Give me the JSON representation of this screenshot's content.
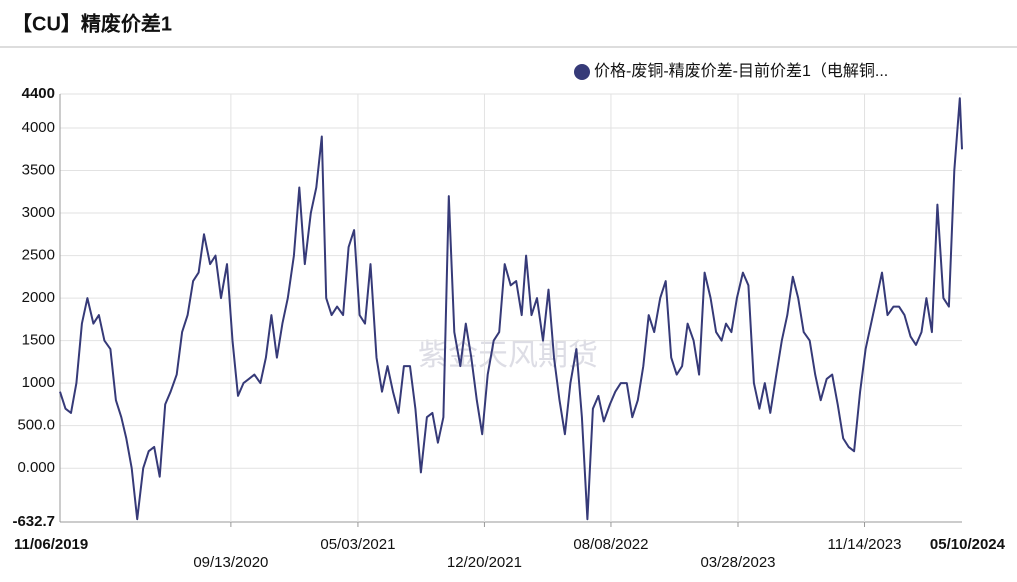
{
  "chart_data": {
    "type": "line",
    "title": "【CU】精废价差1",
    "watermark": "紫金天风期货",
    "grid": true,
    "legend_position": "top-right",
    "xlim": [
      "11/06/2019",
      "05/10/2024"
    ],
    "xticks": [
      "11/06/2019",
      "09/13/2020",
      "05/03/2021",
      "12/20/2021",
      "08/08/2022",
      "03/28/2023",
      "11/14/2023",
      "05/10/2024"
    ],
    "ylim": [
      -632.7,
      4400
    ],
    "yticks": [
      -632.7,
      {
        "value": 0,
        "label": "0.000"
      },
      {
        "value": 500,
        "label": "500.0"
      },
      1000,
      1500,
      2000,
      2500,
      3000,
      3500,
      4000,
      4400
    ],
    "x": [
      "11/06/2019",
      "11/16/2019",
      "11/26/2019",
      "12/06/2019",
      "12/16/2019",
      "12/26/2019",
      "01/06/2020",
      "01/16/2020",
      "01/26/2020",
      "02/06/2020",
      "02/16/2020",
      "02/26/2020",
      "03/06/2020",
      "03/16/2020",
      "03/26/2020",
      "04/06/2020",
      "04/16/2020",
      "04/26/2020",
      "05/06/2020",
      "05/16/2020",
      "05/26/2020",
      "06/06/2020",
      "06/16/2020",
      "06/26/2020",
      "07/06/2020",
      "07/16/2020",
      "07/26/2020",
      "08/06/2020",
      "08/16/2020",
      "08/26/2020",
      "09/06/2020",
      "09/16/2020",
      "09/26/2020",
      "10/06/2020",
      "10/16/2020",
      "10/26/2020",
      "11/06/2020",
      "11/16/2020",
      "11/26/2020",
      "12/06/2020",
      "12/16/2020",
      "12/26/2020",
      "01/06/2021",
      "01/16/2021",
      "01/26/2021",
      "02/06/2021",
      "02/16/2021",
      "02/26/2021",
      "03/06/2021",
      "03/16/2021",
      "03/26/2021",
      "04/06/2021",
      "04/16/2021",
      "04/26/2021",
      "05/06/2021",
      "05/16/2021",
      "05/26/2021",
      "06/06/2021",
      "06/16/2021",
      "06/26/2021",
      "07/06/2021",
      "07/16/2021",
      "07/26/2021",
      "08/06/2021",
      "08/16/2021",
      "08/26/2021",
      "09/06/2021",
      "09/16/2021",
      "09/26/2021",
      "10/06/2021",
      "10/16/2021",
      "10/26/2021",
      "11/06/2021",
      "11/16/2021",
      "11/26/2021",
      "12/06/2021",
      "12/16/2021",
      "12/26/2021",
      "01/06/2022",
      "01/16/2022",
      "01/26/2022",
      "02/06/2022",
      "02/16/2022",
      "02/26/2022",
      "03/06/2022",
      "03/16/2022",
      "03/26/2022",
      "04/06/2022",
      "04/16/2022",
      "04/26/2022",
      "05/06/2022",
      "05/16/2022",
      "05/26/2022",
      "06/06/2022",
      "06/16/2022",
      "06/26/2022",
      "07/06/2022",
      "07/16/2022",
      "07/26/2022",
      "08/06/2022",
      "08/16/2022",
      "08/26/2022",
      "09/06/2022",
      "09/16/2022",
      "09/26/2022",
      "10/06/2022",
      "10/16/2022",
      "10/26/2022",
      "11/06/2022",
      "11/16/2022",
      "11/26/2022",
      "12/06/2022",
      "12/16/2022",
      "12/26/2022",
      "01/06/2023",
      "01/16/2023",
      "01/26/2023",
      "02/06/2023",
      "02/16/2023",
      "02/26/2023",
      "03/06/2023",
      "03/16/2023",
      "03/26/2023",
      "04/06/2023",
      "04/16/2023",
      "04/26/2023",
      "05/06/2023",
      "05/16/2023",
      "05/26/2023",
      "06/06/2023",
      "06/16/2023",
      "06/26/2023",
      "07/06/2023",
      "07/16/2023",
      "07/26/2023",
      "08/06/2023",
      "08/16/2023",
      "08/26/2023",
      "09/06/2023",
      "09/16/2023",
      "09/26/2023",
      "10/06/2023",
      "10/16/2023",
      "10/26/2023",
      "11/06/2023",
      "11/16/2023",
      "11/26/2023",
      "12/06/2023",
      "12/16/2023",
      "12/26/2023",
      "01/06/2024",
      "01/16/2024",
      "01/26/2024",
      "02/06/2024",
      "02/16/2024",
      "02/26/2024",
      "03/06/2024",
      "03/16/2024",
      "03/26/2024",
      "04/06/2024",
      "04/16/2024",
      "04/26/2024",
      "05/06/2024",
      "05/10/2024"
    ],
    "series": [
      {
        "name": "价格-废铜-精废价差-目前价差1（电解铜...",
        "color": "#363a78",
        "values": [
          900,
          700,
          650,
          1000,
          1700,
          2000,
          1700,
          1800,
          1500,
          1400,
          800,
          600,
          350,
          0,
          -600,
          0,
          200,
          250,
          -100,
          750,
          900,
          1100,
          1600,
          1800,
          2200,
          2300,
          2750,
          2400,
          2500,
          2000,
          2400,
          1500,
          850,
          1000,
          1050,
          1100,
          1000,
          1300,
          1800,
          1300,
          1700,
          2000,
          2500,
          3300,
          2400,
          3000,
          3300,
          3900,
          2000,
          1800,
          1900,
          1800,
          2600,
          2800,
          1800,
          1700,
          2400,
          1300,
          900,
          1200,
          900,
          650,
          1200,
          1200,
          700,
          -50,
          600,
          650,
          300,
          600,
          3200,
          1600,
          1200,
          1700,
          1300,
          800,
          400,
          1100,
          1500,
          1600,
          2400,
          2150,
          2200,
          1800,
          2500,
          1800,
          2000,
          1500,
          2100,
          1300,
          800,
          400,
          1000,
          1400,
          600,
          -600,
          700,
          850,
          550,
          750,
          900,
          1000,
          1000,
          600,
          800,
          1200,
          1800,
          1600,
          2000,
          2200,
          1300,
          1100,
          1200,
          1700,
          1500,
          1100,
          2300,
          2000,
          1600,
          1500,
          1700,
          1600,
          2000,
          2300,
          2150,
          1000,
          700,
          1000,
          650,
          1100,
          1500,
          1800,
          2250,
          2000,
          1600,
          1500,
          1100,
          800,
          1050,
          1100,
          750,
          350,
          250,
          200,
          900,
          1400,
          1700,
          2000,
          2300,
          1800,
          1900,
          1900,
          1800,
          1550,
          1450,
          1600,
          2000,
          1600,
          3100,
          2000,
          1900,
          3500,
          4350,
          3750
        ]
      }
    ]
  }
}
